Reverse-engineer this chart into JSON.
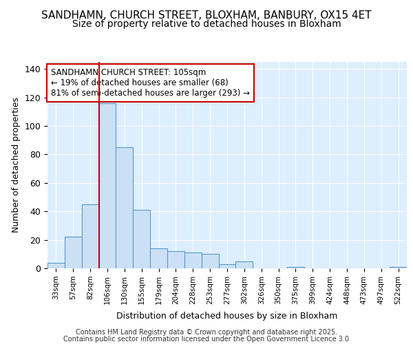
{
  "title_line1": "SANDHAMN, CHURCH STREET, BLOXHAM, BANBURY, OX15 4ET",
  "title_line2": "Size of property relative to detached houses in Bloxham",
  "xlabel": "Distribution of detached houses by size in Bloxham",
  "ylabel": "Number of detached properties",
  "footer_line1": "Contains HM Land Registry data © Crown copyright and database right 2025.",
  "footer_line2": "Contains public sector information licensed under the Open Government Licence 3.0",
  "bar_labels": [
    "33sqm",
    "57sqm",
    "82sqm",
    "106sqm",
    "130sqm",
    "155sqm",
    "179sqm",
    "204sqm",
    "228sqm",
    "253sqm",
    "277sqm",
    "302sqm",
    "326sqm",
    "350sqm",
    "375sqm",
    "399sqm",
    "424sqm",
    "448sqm",
    "473sqm",
    "497sqm",
    "522sqm"
  ],
  "bar_values": [
    4,
    22,
    45,
    116,
    85,
    41,
    14,
    12,
    11,
    10,
    3,
    5,
    0,
    0,
    1,
    0,
    0,
    0,
    0,
    0,
    1
  ],
  "bar_color": "#cce0f5",
  "bar_edge_color": "#5599cc",
  "annotation_line1": "SANDHAMN CHURCH STREET: 105sqm",
  "annotation_line2": "← 19% of detached houses are smaller (68)",
  "annotation_line3": "81% of semi-detached houses are larger (293) →",
  "ylim": [
    0,
    145
  ],
  "yticks": [
    0,
    20,
    40,
    60,
    80,
    100,
    120,
    140
  ],
  "bg_color": "#ddeeff",
  "grid_color": "#ffffff",
  "fig_bg_color": "#ffffff",
  "title_fontsize": 11,
  "subtitle_fontsize": 10,
  "annotation_fontsize": 8.5,
  "bar_width": 1.0
}
